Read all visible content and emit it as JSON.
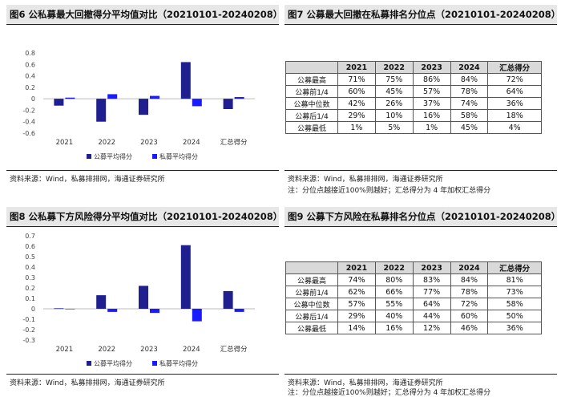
{
  "panels": {
    "fig6": {
      "title": "图6 公私募最大回撤得分平均值对比（20210101-20240208）",
      "source": "资料来源：Wind，私募排排网，海通证券研究所"
    },
    "fig7": {
      "title": "图7 公募最大回撤在私募排名分位点（20210101-20240208）",
      "source": "资料来源：Wind，私募排排网，海通证券研究所",
      "note": "注：分位点越接近100%则越好；汇总得分为 4 年加权汇总得分",
      "columns": [
        "",
        "2021",
        "2022",
        "2023",
        "2024",
        "汇总得分"
      ],
      "rows": [
        [
          "公募最高",
          "71%",
          "75%",
          "86%",
          "84%",
          "72%"
        ],
        [
          "公募前1/4",
          "60%",
          "45%",
          "57%",
          "78%",
          "64%"
        ],
        [
          "公募中位数",
          "42%",
          "26%",
          "37%",
          "74%",
          "36%"
        ],
        [
          "公募后1/4",
          "29%",
          "10%",
          "16%",
          "58%",
          "18%"
        ],
        [
          "公募最低",
          "1%",
          "5%",
          "1%",
          "45%",
          "4%"
        ]
      ]
    },
    "fig8": {
      "title": "图8 公私募下方风险得分平均值对比（20210101-20240208）",
      "source": "资料来源：Wind，私募排排网，海通证券研究所"
    },
    "fig9": {
      "title": "图9 公募下方风险在私募排名分位点（20210101-20240208）",
      "source": "资料来源：Wind，私募排排网，海通证券研究所",
      "note": "注：分位点越接近100%则越好；汇总得分为 4 年加权汇总得分",
      "columns": [
        "",
        "2021",
        "2022",
        "2023",
        "2024",
        "汇总得分"
      ],
      "rows": [
        [
          "公募最高",
          "74%",
          "80%",
          "83%",
          "84%",
          "81%"
        ],
        [
          "公募前1/4",
          "62%",
          "66%",
          "77%",
          "78%",
          "73%"
        ],
        [
          "公募中位数",
          "57%",
          "55%",
          "64%",
          "72%",
          "58%"
        ],
        [
          "公募后1/4",
          "29%",
          "40%",
          "44%",
          "60%",
          "50%"
        ],
        [
          "公募最低",
          "14%",
          "16%",
          "12%",
          "46%",
          "36%"
        ]
      ]
    }
  },
  "colors": {
    "public": "#1f1f8f",
    "private": "#1a1aff",
    "header_bg": "#d9d9d9",
    "title_bg": "#e7e7e7"
  },
  "chart_data": [
    {
      "type": "bar",
      "id": "fig6",
      "categories": [
        "2021",
        "2022",
        "2023",
        "2024",
        "汇总得分"
      ],
      "series": [
        {
          "name": "公募平均得分",
          "values": [
            -0.12,
            -0.4,
            -0.28,
            0.64,
            -0.18
          ]
        },
        {
          "name": "私募平均得分",
          "values": [
            0.02,
            0.08,
            0.05,
            -0.13,
            0.03
          ]
        }
      ],
      "yticks": [
        "0.8",
        "0.6",
        "0.4",
        "0.2",
        "0",
        "-0.2",
        "-0.4",
        "-0.6"
      ],
      "ylim": [
        -0.6,
        0.8
      ],
      "legend": "bottom",
      "grid": false
    },
    {
      "type": "bar",
      "id": "fig8",
      "categories": [
        "2021",
        "2022",
        "2023",
        "2024",
        "汇总得分"
      ],
      "series": [
        {
          "name": "公募平均得分",
          "values": [
            0.005,
            0.13,
            0.22,
            0.61,
            0.17
          ]
        },
        {
          "name": "私募平均得分",
          "values": [
            0.0,
            -0.03,
            -0.04,
            -0.12,
            -0.03
          ]
        }
      ],
      "yticks": [
        "0.7",
        "0.6",
        "0.5",
        "0.4",
        "0.3",
        "0.2",
        "0.1",
        "0",
        "-0.1",
        "-0.2",
        "-0.3"
      ],
      "ylim": [
        -0.3,
        0.7
      ],
      "legend": "bottom",
      "grid": false
    }
  ]
}
